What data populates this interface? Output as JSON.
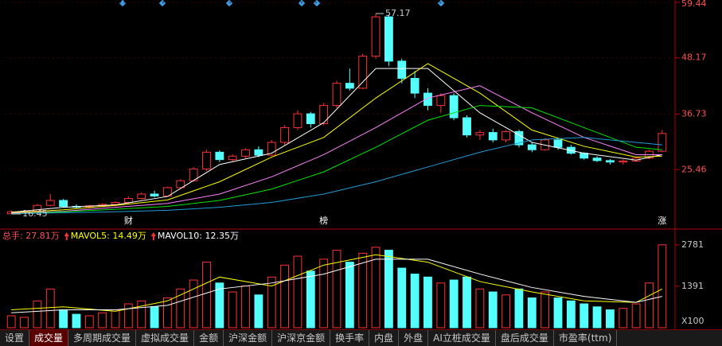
{
  "chart_data": [
    {
      "type": "candlestick",
      "open": [
        16.5,
        16.9,
        17.0,
        18.2,
        19.2,
        18.0,
        17.9,
        18.1,
        18.4,
        18.8,
        19.6,
        20.5,
        20.1,
        21.8,
        23.2,
        25.6,
        29.0,
        27.5,
        28.2,
        29.5,
        28.4,
        31.0,
        34.0,
        36.8,
        34.8,
        38.5,
        43.0,
        42.0,
        48.5,
        56.5,
        47.5,
        44.0,
        41.0,
        38.5,
        40.5,
        36.0,
        32.5,
        33.0,
        31.5,
        33.2,
        30.5,
        29.5,
        31.5,
        30.0,
        28.8,
        27.8,
        27.3,
        27.0,
        27.2,
        27.8,
        29.2
      ],
      "high": [
        17.2,
        17.3,
        18.5,
        20.5,
        19.5,
        18.4,
        18.3,
        18.6,
        19.0,
        20.0,
        20.8,
        21.2,
        22.0,
        23.5,
        26.0,
        29.5,
        29.4,
        28.6,
        29.8,
        30.2,
        31.5,
        34.5,
        37.5,
        37.2,
        39.0,
        43.5,
        46.0,
        49.0,
        57.17,
        57.0,
        48.0,
        45.5,
        42.0,
        41.0,
        41.0,
        36.5,
        33.5,
        33.8,
        33.5,
        33.6,
        31.0,
        31.8,
        32.0,
        30.5,
        29.0,
        28.2,
        27.6,
        27.5,
        28.0,
        29.5,
        33.5
      ],
      "low": [
        16.45,
        16.6,
        16.9,
        18.0,
        17.8,
        17.5,
        17.6,
        17.9,
        18.2,
        18.6,
        19.4,
        19.8,
        20.0,
        21.5,
        23.0,
        25.2,
        27.0,
        27.0,
        27.8,
        28.0,
        28.2,
        30.5,
        33.5,
        34.0,
        34.5,
        38.0,
        41.5,
        41.8,
        48.0,
        46.5,
        43.0,
        40.0,
        37.5,
        37.0,
        35.5,
        32.0,
        31.5,
        31.0,
        31.0,
        30.0,
        29.0,
        29.3,
        29.5,
        28.5,
        27.5,
        27.0,
        26.5,
        26.5,
        27.0,
        27.6,
        29.0
      ],
      "close": [
        16.9,
        17.0,
        18.2,
        19.2,
        18.0,
        17.9,
        18.1,
        18.4,
        18.8,
        19.6,
        20.5,
        20.1,
        21.8,
        23.2,
        25.6,
        29.0,
        27.5,
        28.2,
        29.5,
        28.4,
        31.0,
        34.0,
        36.8,
        34.8,
        38.5,
        43.0,
        42.0,
        48.5,
        56.5,
        47.5,
        44.0,
        41.0,
        38.5,
        40.5,
        36.0,
        32.5,
        33.0,
        31.5,
        33.2,
        30.5,
        29.5,
        31.5,
        30.0,
        28.8,
        27.8,
        27.3,
        27.0,
        27.2,
        27.8,
        29.2,
        32.8
      ],
      "up_color": "#ff3232",
      "down_color": "#54ffff",
      "ylim": [
        13.87,
        59.92
      ],
      "yticks": [
        25.46,
        36.73,
        48.17,
        59.44
      ],
      "max_label": "57.17",
      "min_label": "16.45",
      "events": [
        {
          "x": 9,
          "label": "财"
        },
        {
          "x": 24,
          "label": "榜"
        },
        {
          "x": 50,
          "label": "涨"
        }
      ],
      "ma_x": [
        0,
        4,
        8,
        12,
        16,
        20,
        24,
        28,
        32,
        36,
        40,
        44,
        48,
        50
      ],
      "series": [
        {
          "color": "#ffffff",
          "values": [
            16.8,
            17.8,
            18.3,
            20.0,
            26.5,
            28.8,
            35.0,
            46.0,
            46.0,
            37.0,
            31.0,
            28.8,
            27.4,
            28.5
          ]
        },
        {
          "color": "#ffff00",
          "values": [
            16.7,
            17.3,
            18.2,
            19.3,
            23.0,
            28.0,
            32.0,
            40.0,
            47.0,
            41.0,
            33.5,
            30.2,
            28.0,
            28.2
          ]
        },
        {
          "color": "#ff80ff",
          "values": [
            16.6,
            17.0,
            17.8,
            18.6,
            20.5,
            24.0,
            28.5,
            34.0,
            40.0,
            42.5,
            37.0,
            32.0,
            28.5,
            28.5
          ]
        },
        {
          "color": "#00e600",
          "values": [
            16.5,
            16.9,
            17.4,
            18.0,
            19.2,
            21.5,
            25.0,
            30.0,
            35.5,
            38.5,
            38.0,
            34.0,
            30.0,
            29.5
          ]
        },
        {
          "color": "#1e9bd7",
          "values": [
            16.5,
            16.7,
            16.9,
            17.2,
            17.8,
            18.8,
            20.5,
            23.0,
            26.0,
            29.0,
            31.5,
            32.0,
            31.0,
            30.5
          ]
        }
      ]
    },
    {
      "type": "bar",
      "values": [
        400,
        350,
        900,
        1300,
        600,
        450,
        400,
        500,
        600,
        800,
        900,
        700,
        1000,
        1300,
        1600,
        2200,
        1500,
        1200,
        1400,
        1100,
        1700,
        2100,
        2400,
        1900,
        2300,
        2600,
        2200,
        2500,
        2700,
        2600,
        2000,
        1800,
        1700,
        1500,
        1600,
        1700,
        1300,
        1200,
        1100,
        1300,
        1000,
        1200,
        1000,
        900,
        800,
        700,
        600,
        650,
        800,
        1500,
        2781
      ],
      "ylim": [
        0,
        2990
      ],
      "yticks": [
        1391,
        2781
      ],
      "unit": "X100",
      "header_label": "总手: 27.81万",
      "ma_x": [
        0,
        4,
        8,
        12,
        16,
        20,
        24,
        28,
        32,
        36,
        40,
        44,
        48,
        50
      ],
      "series": [
        {
          "name": "MAVOL5: 14.49万",
          "color": "#ffff00",
          "values": [
            600,
            700,
            550,
            900,
            1700,
            1400,
            2100,
            2450,
            2200,
            1550,
            1200,
            900,
            850,
            1300
          ]
        },
        {
          "name": "MAVOL10: 12.35万",
          "color": "#ffffff",
          "values": [
            500,
            600,
            600,
            750,
            1300,
            1500,
            1800,
            2300,
            2300,
            1800,
            1350,
            1050,
            850,
            1050
          ]
        }
      ]
    }
  ],
  "tabs": [
    "设置",
    "成交量",
    "多周期成交量",
    "虚拟成交量",
    "金额",
    "沪深金额",
    "沪深京金额",
    "换手率",
    "内盘",
    "外盘",
    "AI立桩成交量",
    "盘后成交量",
    "市盈率(ttm)"
  ]
}
